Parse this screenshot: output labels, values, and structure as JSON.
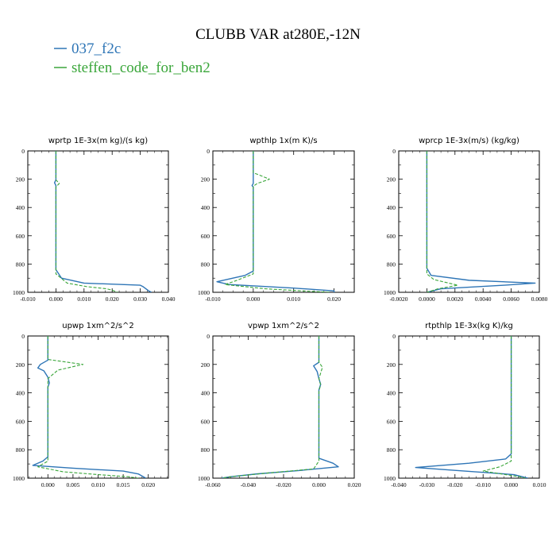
{
  "title": "CLUBB VAR at280E,-12N",
  "legend": [
    {
      "label": "037_f2c",
      "color": "#2e75b6",
      "dash": "solid"
    },
    {
      "label": "steffen_code_for_ben2",
      "color": "#3aa63a",
      "dash": "dashed"
    }
  ],
  "chart_data": [
    {
      "type": "line",
      "title": "wprtp  1E-3x(m kg)/(s kg)",
      "xlim": [
        -0.01,
        0.04
      ],
      "ylim": [
        1000,
        0
      ],
      "y_reversed": true,
      "xticks": [
        "-0.010",
        "0.000",
        "0.010",
        "0.020",
        "0.030",
        "0.040"
      ],
      "yticks": [
        "0",
        "200",
        "400",
        "600",
        "800",
        "1000"
      ],
      "series": [
        {
          "name": "037_f2c",
          "color": "#2e75b6",
          "dash": "solid",
          "points": [
            [
              0,
              0
            ],
            [
              0,
              205
            ],
            [
              -0.0005,
              225
            ],
            [
              0,
              245
            ],
            [
              0,
              840
            ],
            [
              0.002,
              900
            ],
            [
              0.01,
              935
            ],
            [
              0.03,
              950
            ],
            [
              0.031,
              960
            ],
            [
              0.033,
              990
            ],
            [
              0.034,
              1000
            ]
          ]
        },
        {
          "name": "steffen_code_for_ben2",
          "color": "#3aa63a",
          "dash": "dashed",
          "points": [
            [
              0,
              0
            ],
            [
              0,
              205
            ],
            [
              0.0012,
              230
            ],
            [
              0,
              255
            ],
            [
              0,
              870
            ],
            [
              0.004,
              935
            ],
            [
              0.011,
              960
            ],
            [
              0.018,
              975
            ],
            [
              0.02,
              985
            ],
            [
              0.022,
              1000
            ]
          ]
        }
      ]
    },
    {
      "type": "line",
      "title": "wpthlp  1x(m K)/s",
      "xlim": [
        -0.01,
        0.025
      ],
      "ylim": [
        1000,
        0
      ],
      "y_reversed": true,
      "xticks": [
        "-0.010",
        "0.000",
        "0.010",
        "0.020"
      ],
      "yticks": [
        "0",
        "200",
        "400",
        "600",
        "800",
        "1000"
      ],
      "series": [
        {
          "name": "037_f2c",
          "color": "#2e75b6",
          "dash": "solid",
          "points": [
            [
              0,
              0
            ],
            [
              0,
              230
            ],
            [
              -0.0003,
              245
            ],
            [
              0,
              255
            ],
            [
              0,
              850
            ],
            [
              -0.002,
              880
            ],
            [
              -0.009,
              925
            ],
            [
              -0.006,
              945
            ],
            [
              0.01,
              970
            ],
            [
              0.02,
              990
            ],
            [
              0.02,
              1000
            ]
          ]
        },
        {
          "name": "steffen_code_for_ben2",
          "color": "#3aa63a",
          "dash": "dashed",
          "points": [
            [
              0,
              0
            ],
            [
              0,
              155
            ],
            [
              0.001,
              165
            ],
            [
              0.004,
              200
            ],
            [
              0.001,
              230
            ],
            [
              0,
              250
            ],
            [
              0,
              870
            ],
            [
              -0.004,
              915
            ],
            [
              -0.007,
              945
            ],
            [
              0.003,
              975
            ],
            [
              0.012,
              990
            ],
            [
              0.019,
              1000
            ]
          ]
        }
      ]
    },
    {
      "type": "line",
      "title": "wprcp  1E-3x(m/s) (kg/kg)",
      "xlim": [
        -0.002,
        0.008
      ],
      "ylim": [
        1000,
        0
      ],
      "y_reversed": true,
      "xticks": [
        "-0.0020",
        "0.0000",
        "0.0020",
        "0.0040",
        "0.0060",
        "0.0080"
      ],
      "yticks": [
        "0",
        "200",
        "400",
        "600",
        "800",
        "1000"
      ],
      "series": [
        {
          "name": "037_f2c",
          "color": "#2e75b6",
          "dash": "solid",
          "points": [
            [
              0,
              0
            ],
            [
              0,
              830
            ],
            [
              0.0003,
              880
            ],
            [
              0.003,
              915
            ],
            [
              0.0077,
              935
            ],
            [
              0.0055,
              950
            ],
            [
              0.001,
              975
            ],
            [
              0,
              1000
            ]
          ]
        },
        {
          "name": "steffen_code_for_ben2",
          "color": "#3aa63a",
          "dash": "dashed",
          "points": [
            [
              0,
              0
            ],
            [
              0,
              870
            ],
            [
              0.0005,
              910
            ],
            [
              0.0022,
              950
            ],
            [
              0.0008,
              975
            ],
            [
              0,
              1000
            ]
          ]
        }
      ]
    },
    {
      "type": "line",
      "title": "upwp  1xm^2/s^2",
      "xlim": [
        -0.004,
        0.024
      ],
      "ylim": [
        1000,
        0
      ],
      "y_reversed": true,
      "xticks": [
        "0.000",
        "0.005",
        "0.010",
        "0.015",
        "0.020"
      ],
      "yticks": [
        "0",
        "200",
        "400",
        "600",
        "800",
        "1000"
      ],
      "series": [
        {
          "name": "037_f2c",
          "color": "#2e75b6",
          "dash": "solid",
          "points": [
            [
              0,
              0
            ],
            [
              0,
              170
            ],
            [
              -0.0015,
              200
            ],
            [
              -0.002,
              225
            ],
            [
              -0.0008,
              245
            ],
            [
              0,
              290
            ],
            [
              0.0003,
              330
            ],
            [
              0,
              360
            ],
            [
              0,
              850
            ],
            [
              -0.001,
              880
            ],
            [
              -0.003,
              910
            ],
            [
              0.005,
              930
            ],
            [
              0.015,
              950
            ],
            [
              0.018,
              970
            ],
            [
              0.0195,
              1000
            ]
          ]
        },
        {
          "name": "steffen_code_for_ben2",
          "color": "#3aa63a",
          "dash": "dashed",
          "points": [
            [
              0,
              0
            ],
            [
              0,
              165
            ],
            [
              0.003,
              180
            ],
            [
              0.007,
              200
            ],
            [
              0.002,
              240
            ],
            [
              0,
              300
            ],
            [
              0,
              880
            ],
            [
              -0.002,
              920
            ],
            [
              0.003,
              955
            ],
            [
              0.01,
              975
            ],
            [
              0.016,
              990
            ],
            [
              0.018,
              1000
            ]
          ]
        }
      ]
    },
    {
      "type": "line",
      "title": "vpwp  1xm^2/s^2",
      "xlim": [
        -0.06,
        0.02
      ],
      "ylim": [
        1000,
        0
      ],
      "y_reversed": true,
      "xticks": [
        "-0.060",
        "-0.040",
        "-0.020",
        "0.000",
        "0.020"
      ],
      "yticks": [
        "0",
        "200",
        "400",
        "600",
        "800",
        "1000"
      ],
      "series": [
        {
          "name": "037_f2c",
          "color": "#2e75b6",
          "dash": "solid",
          "points": [
            [
              0,
              0
            ],
            [
              0,
              185
            ],
            [
              -0.003,
              210
            ],
            [
              -0.001,
              250
            ],
            [
              0,
              300
            ],
            [
              0.001,
              340
            ],
            [
              0,
              380
            ],
            [
              0,
              860
            ],
            [
              0.008,
              895
            ],
            [
              0.011,
              920
            ],
            [
              -0.01,
              945
            ],
            [
              -0.035,
              970
            ],
            [
              -0.05,
              990
            ],
            [
              -0.055,
              1000
            ]
          ]
        },
        {
          "name": "steffen_code_for_ben2",
          "color": "#3aa63a",
          "dash": "dashed",
          "points": [
            [
              0,
              0
            ],
            [
              0,
              185
            ],
            [
              0.002,
              220
            ],
            [
              0.001,
              260
            ],
            [
              0,
              300
            ],
            [
              0.001,
              345
            ],
            [
              0,
              385
            ],
            [
              0,
              880
            ],
            [
              -0.003,
              935
            ],
            [
              -0.03,
              965
            ],
            [
              -0.05,
              990
            ],
            [
              -0.055,
              1000
            ]
          ]
        }
      ]
    },
    {
      "type": "line",
      "title": "rtpthlp  1E-3x(kg K)/kg",
      "xlim": [
        -0.04,
        0.01
      ],
      "ylim": [
        1000,
        0
      ],
      "y_reversed": true,
      "xticks": [
        "-0.040",
        "-0.030",
        "-0.020",
        "-0.010",
        "0.000",
        "0.010"
      ],
      "yticks": [
        "0",
        "200",
        "400",
        "600",
        "800",
        "1000"
      ],
      "series": [
        {
          "name": "037_f2c",
          "color": "#2e75b6",
          "dash": "solid",
          "points": [
            [
              0,
              0
            ],
            [
              0,
              830
            ],
            [
              -0.002,
              865
            ],
            [
              -0.015,
              895
            ],
            [
              -0.034,
              925
            ],
            [
              -0.02,
              945
            ],
            [
              0.001,
              975
            ],
            [
              0.006,
              1000
            ]
          ]
        },
        {
          "name": "steffen_code_for_ben2",
          "color": "#3aa63a",
          "dash": "dashed",
          "points": [
            [
              0,
              0
            ],
            [
              0,
              880
            ],
            [
              -0.004,
              920
            ],
            [
              -0.01,
              950
            ],
            [
              -0.002,
              975
            ],
            [
              0.003,
              990
            ],
            [
              0.005,
              1000
            ]
          ]
        }
      ]
    }
  ]
}
